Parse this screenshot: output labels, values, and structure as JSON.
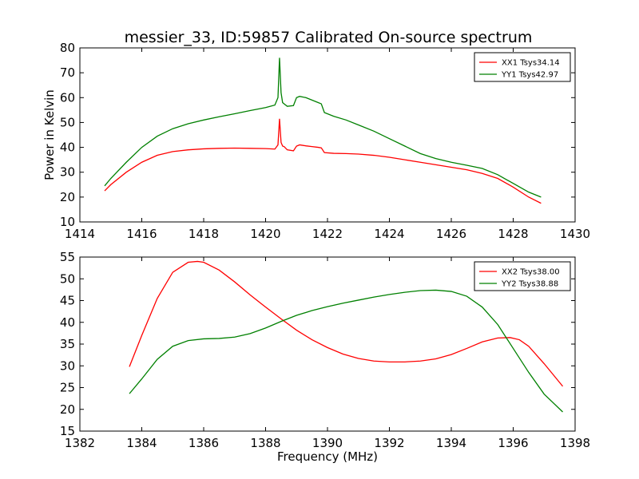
{
  "title": "messier_33, ID:59857 Calibrated On-source spectrum",
  "chart_data": [
    {
      "type": "line",
      "title": "messier_33, ID:59857 Calibrated On-source spectrum",
      "xlabel": "",
      "ylabel": "Power in Kelvin",
      "xlim": [
        1414,
        1430
      ],
      "ylim": [
        10,
        80
      ],
      "xticks": [
        1414,
        1416,
        1418,
        1420,
        1422,
        1424,
        1426,
        1428,
        1430
      ],
      "yticks": [
        10,
        20,
        30,
        40,
        50,
        60,
        70,
        80
      ],
      "grid": false,
      "legend": "top-right",
      "series": [
        {
          "name": "XX1 Tsys34.14",
          "color": "#ff0000",
          "x": [
            1414.8,
            1415.0,
            1415.5,
            1416.0,
            1416.5,
            1417.0,
            1417.5,
            1418.0,
            1418.5,
            1419.0,
            1419.5,
            1420.0,
            1420.3,
            1420.4,
            1420.45,
            1420.5,
            1420.55,
            1420.6,
            1420.7,
            1420.9,
            1421.0,
            1421.1,
            1421.3,
            1421.5,
            1421.7,
            1421.8,
            1421.9,
            1422.2,
            1422.6,
            1423.0,
            1423.5,
            1424.0,
            1424.5,
            1425.0,
            1425.5,
            1426.0,
            1426.5,
            1427.0,
            1427.5,
            1428.0,
            1428.5,
            1428.9
          ],
          "y": [
            22.5,
            25.0,
            30.0,
            34.0,
            36.8,
            38.3,
            39.0,
            39.4,
            39.6,
            39.7,
            39.6,
            39.5,
            39.3,
            41.0,
            51.5,
            42.0,
            40.5,
            40.3,
            39.0,
            38.6,
            40.5,
            41.0,
            40.6,
            40.3,
            40.0,
            39.8,
            37.9,
            37.6,
            37.5,
            37.3,
            36.8,
            36.0,
            35.0,
            34.0,
            33.0,
            32.0,
            31.0,
            29.5,
            27.5,
            24.0,
            20.0,
            17.5
          ]
        },
        {
          "name": "YY1 Tsys42.97",
          "color": "#008000",
          "x": [
            1414.8,
            1415.0,
            1415.5,
            1416.0,
            1416.5,
            1417.0,
            1417.5,
            1418.0,
            1418.5,
            1419.0,
            1419.5,
            1420.0,
            1420.3,
            1420.4,
            1420.45,
            1420.5,
            1420.55,
            1420.6,
            1420.7,
            1420.9,
            1421.0,
            1421.1,
            1421.3,
            1421.5,
            1421.7,
            1421.8,
            1421.9,
            1422.2,
            1422.6,
            1423.0,
            1423.5,
            1424.0,
            1424.5,
            1425.0,
            1425.5,
            1426.0,
            1426.5,
            1427.0,
            1427.5,
            1428.0,
            1428.5,
            1428.9
          ],
          "y": [
            24.5,
            27.5,
            34.0,
            40.0,
            44.5,
            47.5,
            49.5,
            51.0,
            52.3,
            53.5,
            54.8,
            56.0,
            57.0,
            60.0,
            76.0,
            62.0,
            58.0,
            57.5,
            56.5,
            56.8,
            60.0,
            60.5,
            60.0,
            59.0,
            58.0,
            57.5,
            54.0,
            52.5,
            51.0,
            49.0,
            46.5,
            43.5,
            40.5,
            37.5,
            35.5,
            34.0,
            32.8,
            31.5,
            29.0,
            25.5,
            22.0,
            20.0
          ]
        }
      ]
    },
    {
      "type": "line",
      "title": "",
      "xlabel": "Frequency (MHz)",
      "ylabel": "",
      "xlim": [
        1382,
        1398
      ],
      "ylim": [
        15,
        55
      ],
      "xticks": [
        1382,
        1384,
        1386,
        1388,
        1390,
        1392,
        1394,
        1396,
        1398
      ],
      "yticks": [
        15,
        20,
        25,
        30,
        35,
        40,
        45,
        50,
        55
      ],
      "grid": false,
      "legend": "top-right",
      "series": [
        {
          "name": "XX2 Tsys38.00",
          "color": "#ff0000",
          "x": [
            1383.6,
            1384.0,
            1384.5,
            1385.0,
            1385.5,
            1385.8,
            1386.0,
            1386.5,
            1387.0,
            1387.5,
            1388.0,
            1388.5,
            1389.0,
            1389.5,
            1390.0,
            1390.5,
            1391.0,
            1391.5,
            1392.0,
            1392.5,
            1393.0,
            1393.5,
            1394.0,
            1394.5,
            1395.0,
            1395.5,
            1395.9,
            1396.2,
            1396.5,
            1397.0,
            1397.6
          ],
          "y": [
            29.8,
            37.0,
            45.5,
            51.5,
            53.8,
            54.0,
            53.8,
            52.0,
            49.3,
            46.3,
            43.5,
            40.8,
            38.2,
            36.0,
            34.2,
            32.7,
            31.7,
            31.1,
            30.9,
            30.9,
            31.1,
            31.6,
            32.6,
            34.0,
            35.5,
            36.4,
            36.5,
            36.0,
            34.5,
            30.5,
            25.3
          ]
        },
        {
          "name": "YY2 Tsys38.88",
          "color": "#008000",
          "x": [
            1383.6,
            1384.0,
            1384.5,
            1385.0,
            1385.5,
            1386.0,
            1386.5,
            1387.0,
            1387.5,
            1388.0,
            1388.5,
            1389.0,
            1389.5,
            1390.0,
            1390.5,
            1391.0,
            1391.5,
            1392.0,
            1392.5,
            1393.0,
            1393.5,
            1394.0,
            1394.5,
            1395.0,
            1395.5,
            1396.0,
            1396.5,
            1397.0,
            1397.6
          ],
          "y": [
            23.6,
            27.0,
            31.5,
            34.5,
            35.8,
            36.2,
            36.3,
            36.6,
            37.4,
            38.7,
            40.2,
            41.6,
            42.7,
            43.6,
            44.4,
            45.1,
            45.8,
            46.4,
            46.9,
            47.3,
            47.4,
            47.1,
            46.0,
            43.5,
            39.5,
            34.0,
            28.5,
            23.5,
            19.4
          ]
        }
      ]
    }
  ]
}
